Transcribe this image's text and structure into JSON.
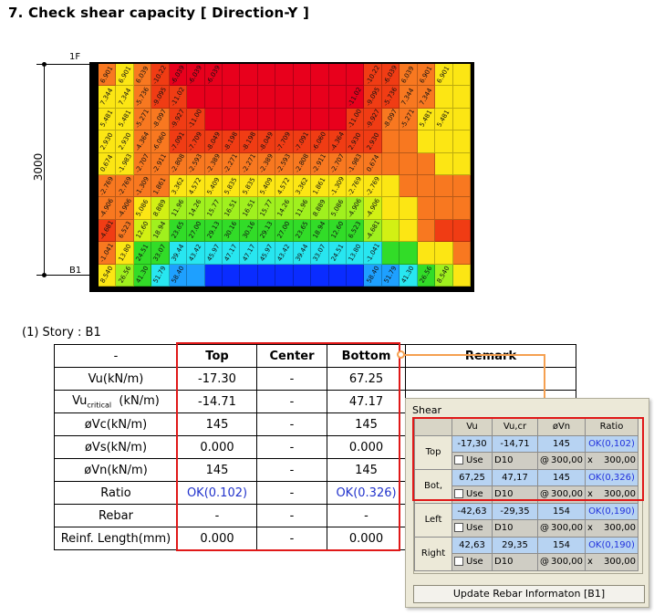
{
  "heading": "7. Check shear capacity  [ Direction-Y ]",
  "figure": {
    "top_floor": "1F",
    "bottom_floor": "B1",
    "height": "3000",
    "colors": {
      "red": "#e8001c",
      "red_orange": "#f03c14",
      "orange": "#f87820",
      "yellow": "#fce614",
      "yellow_green": "#d2f014",
      "lime": "#a0f01e",
      "green": "#32dc28",
      "cyan": "#28e6f0",
      "sky": "#1ea0ff",
      "blue": "#0a2cff"
    },
    "rows": [
      {
        "colors": [
          "orange",
          "yellow",
          "orange",
          "red_orange",
          "red",
          "red",
          "red",
          "red",
          "red",
          "red",
          "red",
          "red",
          "red",
          "red",
          "red",
          "red_orange",
          "red_orange",
          "orange",
          "orange",
          "yellow",
          "yellow"
        ],
        "labels": [
          "6.901",
          "6.901",
          "6.039",
          "-10.22",
          "-6.039",
          "-6.039",
          "-6.039",
          "",
          "",
          "",
          "",
          "",
          "",
          "",
          "",
          "-10.22",
          "-6.039",
          "6.039",
          "6.901",
          "6.901",
          ""
        ]
      },
      {
        "colors": [
          "yellow",
          "yellow",
          "orange",
          "red_orange",
          "red_orange",
          "red",
          "red",
          "red",
          "red",
          "red",
          "red",
          "red",
          "red",
          "red",
          "red",
          "red_orange",
          "red_orange",
          "orange",
          "orange",
          "yellow",
          "yellow"
        ],
        "labels": [
          "7.344",
          "7.344",
          "-5.736",
          "-9.095",
          "-11.02",
          "",
          "",
          "",
          "",
          "",
          "",
          "",
          "",
          "",
          "-11.02",
          "-9.095",
          "-5.736",
          "7.344",
          "7.344",
          "",
          ""
        ]
      },
      {
        "colors": [
          "yellow",
          "yellow",
          "orange",
          "orange",
          "red_orange",
          "red_orange",
          "red",
          "red",
          "red",
          "red",
          "red",
          "red",
          "red",
          "red",
          "red_orange",
          "red_orange",
          "orange",
          "orange",
          "yellow",
          "yellow",
          "yellow"
        ],
        "labels": [
          "5.481",
          "5.481",
          "-5.271",
          "-8.097",
          "-9.927",
          "-11.00",
          "",
          "",
          "",
          "",
          "",
          "",
          "",
          "",
          "-11.00",
          "-9.927",
          "-8.097",
          "-5.271",
          "5.481",
          "5.481",
          ""
        ]
      },
      {
        "colors": [
          "yellow",
          "yellow",
          "orange",
          "orange",
          "red_orange",
          "red_orange",
          "red_orange",
          "red_orange",
          "red_orange",
          "red_orange",
          "red_orange",
          "red_orange",
          "red_orange",
          "red_orange",
          "red_orange",
          "red_orange",
          "orange",
          "orange",
          "yellow",
          "yellow",
          "yellow"
        ],
        "labels": [
          "2.930",
          "2.930",
          "-4.364",
          "-6.060",
          "-7.091",
          "-7.709",
          "-8.049",
          "-8.198",
          "-8.198",
          "-8.049",
          "-7.709",
          "-7.091",
          "-6.060",
          "-4.364",
          "2.930",
          "2.930",
          "",
          "",
          "",
          "",
          ""
        ]
      },
      {
        "colors": [
          "yellow",
          "yellow",
          "orange",
          "orange",
          "orange",
          "orange",
          "orange",
          "orange",
          "orange",
          "orange",
          "orange",
          "orange",
          "orange",
          "orange",
          "orange",
          "orange",
          "orange",
          "orange",
          "orange",
          "yellow",
          "yellow"
        ],
        "labels": [
          "0.674",
          "-1.983",
          "-2.707",
          "-2.911",
          "-2.808",
          "-2.593",
          "-2.389",
          "-2.271",
          "-2.271",
          "-2.389",
          "-2.593",
          "-2.808",
          "-2.911",
          "-2.707",
          "-1.983",
          "0.674",
          "",
          "",
          "",
          "",
          ""
        ]
      },
      {
        "colors": [
          "orange",
          "orange",
          "orange",
          "orange",
          "yellow",
          "yellow",
          "yellow",
          "yellow",
          "yellow",
          "yellow",
          "yellow",
          "yellow",
          "yellow",
          "yellow",
          "yellow",
          "yellow",
          "yellow",
          "orange",
          "orange",
          "orange",
          "orange"
        ],
        "labels": [
          "-2.769",
          "-2.769",
          "-1.309",
          "1.861",
          "3.362",
          "4.572",
          "5.409",
          "5.835",
          "5.835",
          "5.409",
          "4.572",
          "3.362",
          "1.861",
          "-1.309",
          "-2.769",
          "-2.769",
          "",
          "",
          "",
          "",
          ""
        ]
      },
      {
        "colors": [
          "orange",
          "orange",
          "yellow",
          "yellow_green",
          "lime",
          "lime",
          "lime",
          "lime",
          "lime",
          "lime",
          "lime",
          "lime",
          "lime",
          "lime",
          "lime",
          "yellow_green",
          "yellow",
          "yellow",
          "orange",
          "orange",
          "orange"
        ],
        "labels": [
          "-4.906",
          "-4.906",
          "5.086",
          "8.889",
          "11.96",
          "14.26",
          "15.77",
          "16.51",
          "16.51",
          "15.77",
          "14.26",
          "11.96",
          "8.889",
          "5.086",
          "-4.906",
          "-4.906",
          "",
          "",
          "",
          "",
          ""
        ]
      },
      {
        "colors": [
          "red_orange",
          "orange",
          "yellow_green",
          "lime",
          "green",
          "green",
          "green",
          "green",
          "green",
          "green",
          "green",
          "green",
          "green",
          "green",
          "green",
          "lime",
          "yellow_green",
          "yellow",
          "orange",
          "red_orange",
          "red_orange"
        ],
        "labels": [
          "-4.681",
          "6.523",
          "12.60",
          "18.94",
          "23.65",
          "27.00",
          "29.13",
          "30.16",
          "30.16",
          "29.13",
          "27.00",
          "23.65",
          "18.94",
          "12.60",
          "6.523",
          "-4.681",
          "",
          "",
          "",
          "",
          ""
        ]
      },
      {
        "colors": [
          "orange",
          "yellow",
          "green",
          "green",
          "cyan",
          "cyan",
          "cyan",
          "cyan",
          "cyan",
          "cyan",
          "cyan",
          "cyan",
          "cyan",
          "cyan",
          "cyan",
          "cyan",
          "green",
          "green",
          "yellow",
          "yellow",
          "orange"
        ],
        "labels": [
          "-1.041",
          "13.80",
          "24.51",
          "33.07",
          "39.44",
          "43.42",
          "45.97",
          "47.17",
          "47.17",
          "45.97",
          "43.42",
          "39.44",
          "33.07",
          "24.51",
          "13.80",
          "-1.041",
          "",
          "",
          "",
          "",
          ""
        ]
      },
      {
        "colors": [
          "yellow",
          "lime",
          "green",
          "cyan",
          "sky",
          "sky",
          "blue",
          "blue",
          "blue",
          "blue",
          "blue",
          "blue",
          "blue",
          "blue",
          "blue",
          "sky",
          "sky",
          "cyan",
          "green",
          "lime",
          "yellow"
        ],
        "labels": [
          "8.540",
          "26.56",
          "41.30",
          "51.79",
          "58.40",
          "",
          "",
          "",
          "",
          "",
          "",
          "",
          "",
          "",
          "",
          "58.40",
          "51.79",
          "41.30",
          "26.56",
          "8.540",
          ""
        ]
      }
    ]
  },
  "story_label": "(1)  Story : B1",
  "table": {
    "headers": [
      "-",
      "Top",
      "Center",
      "Bottom",
      "Remark"
    ],
    "rows": [
      {
        "label": "Vu(kN/m)",
        "top": "-17.30",
        "center": "-",
        "bottom": "67.25"
      },
      {
        "label_main": "Vu",
        "label_sub": "critical",
        "label_rest": "  (kN/m)",
        "top": "-14.71",
        "center": "-",
        "bottom": "47.17"
      },
      {
        "label": "øVc(kN/m)",
        "top": "145",
        "center": "-",
        "bottom": "145"
      },
      {
        "label": "øVs(kN/m)",
        "top": "0.000",
        "center": "-",
        "bottom": "0.000"
      },
      {
        "label": "øVn(kN/m)",
        "top": "145",
        "center": "-",
        "bottom": "145"
      },
      {
        "label": "Ratio",
        "top": "OK(0.102)",
        "center": "-",
        "bottom": "OK(0.326)"
      },
      {
        "label": "Rebar",
        "top": "-",
        "center": "-",
        "bottom": "-"
      },
      {
        "label": "Reinf. Length(mm)",
        "top": "0.000",
        "center": "-",
        "bottom": "0.000"
      }
    ]
  },
  "panel": {
    "title": "Shear",
    "headers": [
      "Vu",
      "Vu,cr",
      "øVn",
      "Ratio"
    ],
    "groups": [
      {
        "label": "Top",
        "vu": "-17,30",
        "vucr": "-14,71",
        "phivn": "145",
        "ratio": "OK(0,102)",
        "use": "Use",
        "bar": "D10",
        "at": "@",
        "s1": "300,00",
        "x": "x",
        "s2": "300,00"
      },
      {
        "label": "Bot,",
        "vu": "67,25",
        "vucr": "47,17",
        "phivn": "145",
        "ratio": "OK(0,326)",
        "use": "Use",
        "bar": "D10",
        "at": "@",
        "s1": "300,00",
        "x": "x",
        "s2": "300,00"
      },
      {
        "label": "Left",
        "vu": "-42,63",
        "vucr": "-29,35",
        "phivn": "154",
        "ratio": "OK(0,190)",
        "use": "Use",
        "bar": "D10",
        "at": "@",
        "s1": "300,00",
        "x": "x",
        "s2": "300,00"
      },
      {
        "label": "Right",
        "vu": "42,63",
        "vucr": "29,35",
        "phivn": "154",
        "ratio": "OK(0,190)",
        "use": "Use",
        "bar": "D10",
        "at": "@",
        "s1": "300,00",
        "x": "x",
        "s2": "300,00"
      }
    ],
    "button": "Update Rebar Informaton [B1]"
  }
}
